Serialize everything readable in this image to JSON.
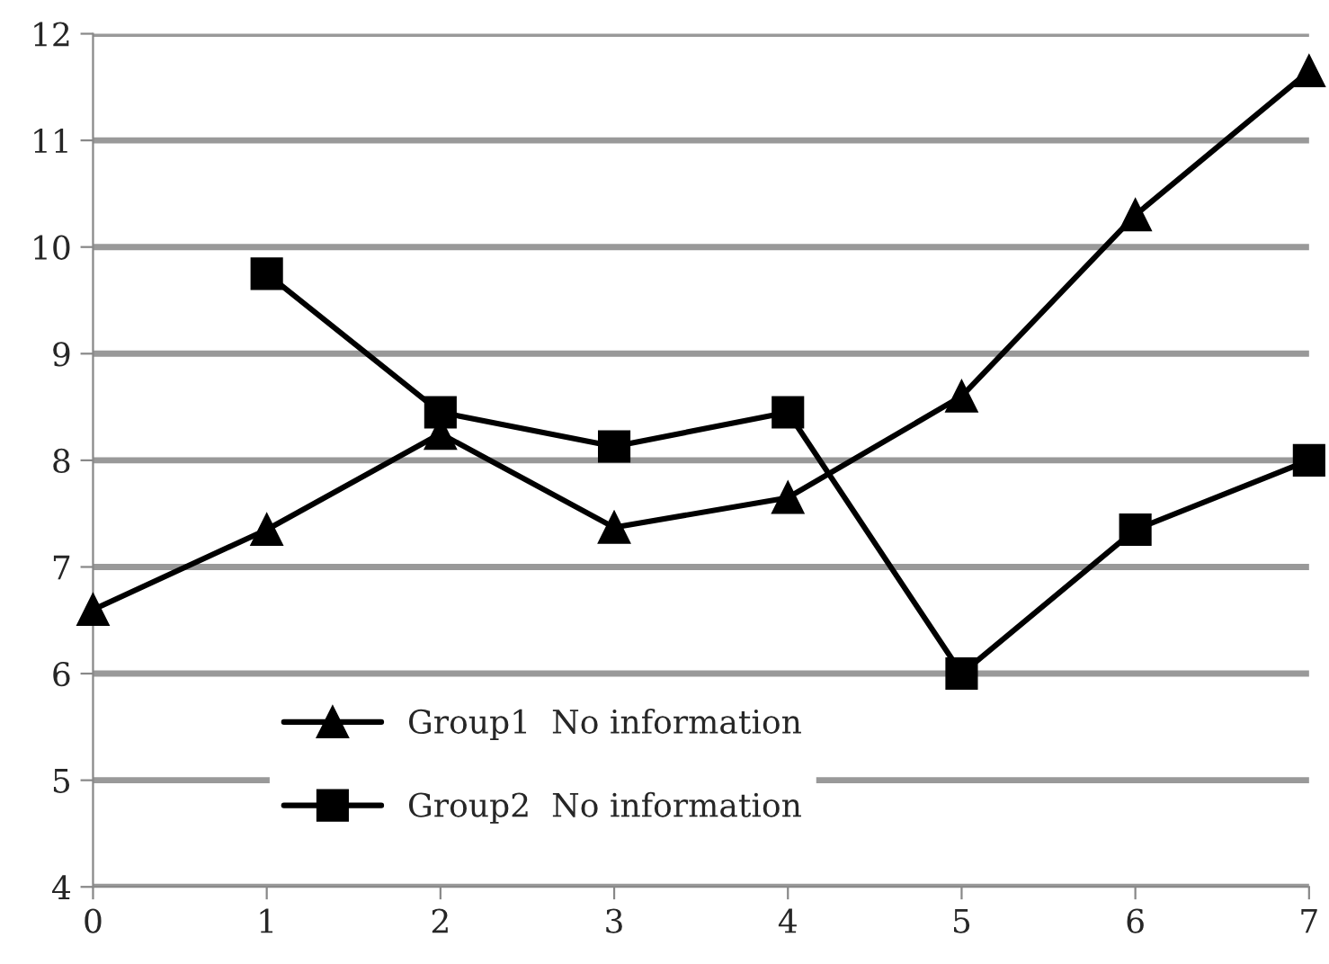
{
  "chart_data": {
    "type": "line",
    "x": [
      0,
      1,
      2,
      3,
      4,
      5,
      6,
      7
    ],
    "series": [
      {
        "name": "Group1  No information",
        "color": "#000000",
        "marker": "triangle",
        "values": [
          6.6,
          7.35,
          8.25,
          7.37,
          7.65,
          8.6,
          10.3,
          11.65
        ]
      },
      {
        "name": "Group2  No information",
        "color": "#000000",
        "marker": "square",
        "values": [
          null,
          9.75,
          8.45,
          8.13,
          8.45,
          6.0,
          7.35,
          8.0
        ]
      }
    ],
    "xlim": [
      0,
      7
    ],
    "xticks": [
      0,
      1,
      2,
      3,
      4,
      5,
      6,
      7
    ],
    "ylim": [
      4,
      12
    ],
    "yticks": [
      4,
      5,
      6,
      7,
      8,
      9,
      10,
      11,
      12
    ],
    "grid": "y",
    "legend": "bottom",
    "line_style": "solid"
  }
}
